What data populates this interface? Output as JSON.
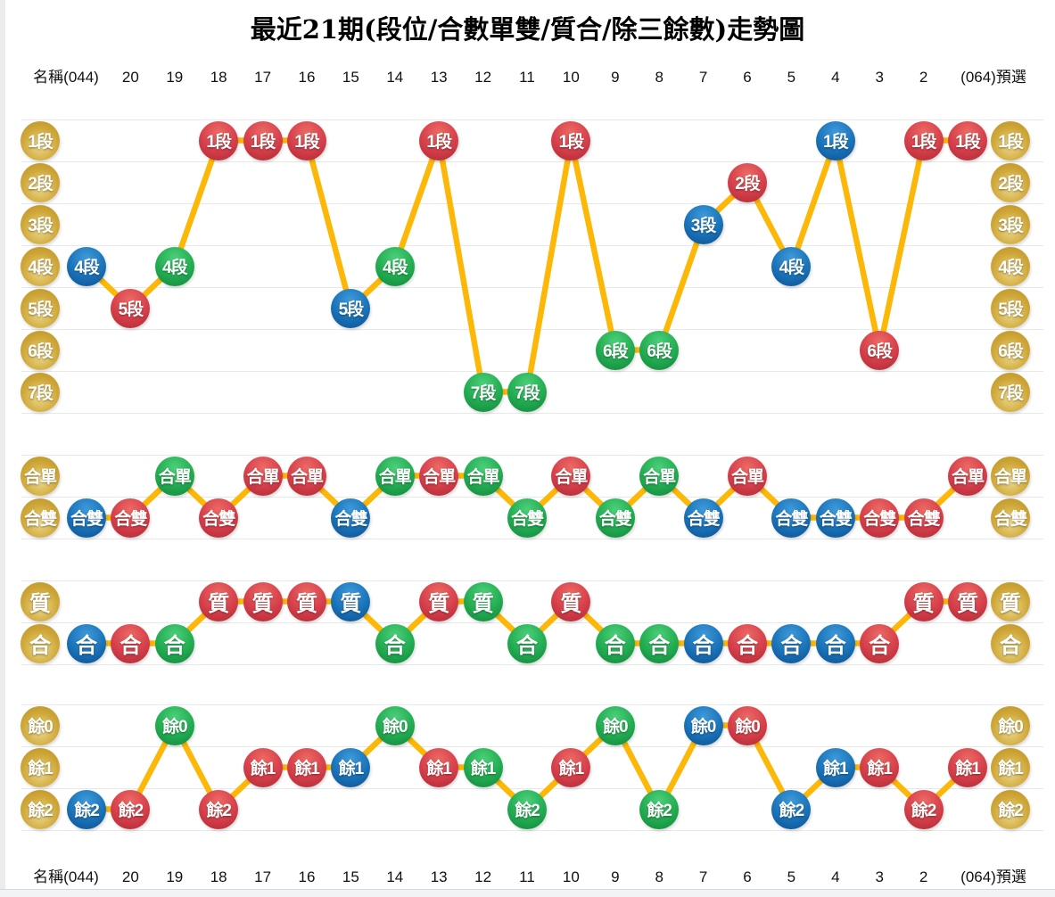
{
  "title": "最近21期(段位/合數單雙/質合/除三餘數)走勢圖",
  "header": {
    "left_label": "名稱(044)",
    "periods": [
      "20",
      "19",
      "18",
      "17",
      "16",
      "15",
      "14",
      "13",
      "12",
      "11",
      "10",
      "9",
      "8",
      "7",
      "6",
      "5",
      "4",
      "3",
      "2"
    ],
    "right_label": "(064)預選"
  },
  "colors": {
    "red": "#d6404b",
    "blue": "#1a74ba",
    "green": "#23ad52",
    "gold": "#cda534",
    "line": "#fcb707",
    "grid": "#e8e8e8"
  },
  "chart_data": [
    {
      "type": "line",
      "name": "段位",
      "rows": [
        "1段",
        "2段",
        "3段",
        "4段",
        "5段",
        "6段",
        "7段"
      ],
      "points": [
        {
          "period": "(044)",
          "label": "4段",
          "row": 3,
          "color": "blue"
        },
        {
          "period": "20",
          "label": "5段",
          "row": 4,
          "color": "red"
        },
        {
          "period": "19",
          "label": "4段",
          "row": 3,
          "color": "green"
        },
        {
          "period": "18",
          "label": "1段",
          "row": 0,
          "color": "red"
        },
        {
          "period": "17",
          "label": "1段",
          "row": 0,
          "color": "red"
        },
        {
          "period": "16",
          "label": "1段",
          "row": 0,
          "color": "red"
        },
        {
          "period": "15",
          "label": "5段",
          "row": 4,
          "color": "blue"
        },
        {
          "period": "14",
          "label": "4段",
          "row": 3,
          "color": "green"
        },
        {
          "period": "13",
          "label": "1段",
          "row": 0,
          "color": "red"
        },
        {
          "period": "12",
          "label": "7段",
          "row": 6,
          "color": "green"
        },
        {
          "period": "11",
          "label": "7段",
          "row": 6,
          "color": "green"
        },
        {
          "period": "10",
          "label": "1段",
          "row": 0,
          "color": "red"
        },
        {
          "period": "9",
          "label": "6段",
          "row": 5,
          "color": "green"
        },
        {
          "period": "8",
          "label": "6段",
          "row": 5,
          "color": "green"
        },
        {
          "period": "7",
          "label": "3段",
          "row": 2,
          "color": "blue"
        },
        {
          "period": "6",
          "label": "2段",
          "row": 1,
          "color": "red"
        },
        {
          "period": "5",
          "label": "4段",
          "row": 3,
          "color": "blue"
        },
        {
          "period": "4",
          "label": "1段",
          "row": 0,
          "color": "blue"
        },
        {
          "period": "3",
          "label": "6段",
          "row": 5,
          "color": "red"
        },
        {
          "period": "2",
          "label": "1段",
          "row": 0,
          "color": "red"
        },
        {
          "period": "(064)預選",
          "label": "1段",
          "row": 0,
          "color": "red"
        }
      ]
    },
    {
      "type": "line",
      "name": "合數單雙",
      "rows": [
        "合單",
        "合雙"
      ],
      "points": [
        {
          "period": "(044)",
          "label": "合雙",
          "row": 1,
          "color": "blue"
        },
        {
          "period": "20",
          "label": "合雙",
          "row": 1,
          "color": "red"
        },
        {
          "period": "19",
          "label": "合單",
          "row": 0,
          "color": "green"
        },
        {
          "period": "18",
          "label": "合雙",
          "row": 1,
          "color": "red"
        },
        {
          "period": "17",
          "label": "合單",
          "row": 0,
          "color": "red"
        },
        {
          "period": "16",
          "label": "合單",
          "row": 0,
          "color": "red"
        },
        {
          "period": "15",
          "label": "合雙",
          "row": 1,
          "color": "blue"
        },
        {
          "period": "14",
          "label": "合單",
          "row": 0,
          "color": "green"
        },
        {
          "period": "13",
          "label": "合單",
          "row": 0,
          "color": "red"
        },
        {
          "period": "12",
          "label": "合單",
          "row": 0,
          "color": "green"
        },
        {
          "period": "11",
          "label": "合雙",
          "row": 1,
          "color": "green"
        },
        {
          "period": "10",
          "label": "合單",
          "row": 0,
          "color": "red"
        },
        {
          "period": "9",
          "label": "合雙",
          "row": 1,
          "color": "green"
        },
        {
          "period": "8",
          "label": "合單",
          "row": 0,
          "color": "green"
        },
        {
          "period": "7",
          "label": "合雙",
          "row": 1,
          "color": "blue"
        },
        {
          "period": "6",
          "label": "合單",
          "row": 0,
          "color": "red"
        },
        {
          "period": "5",
          "label": "合雙",
          "row": 1,
          "color": "blue"
        },
        {
          "period": "4",
          "label": "合雙",
          "row": 1,
          "color": "blue"
        },
        {
          "period": "3",
          "label": "合雙",
          "row": 1,
          "color": "red"
        },
        {
          "period": "2",
          "label": "合雙",
          "row": 1,
          "color": "red"
        },
        {
          "period": "(064)預選",
          "label": "合單",
          "row": 0,
          "color": "red"
        }
      ]
    },
    {
      "type": "line",
      "name": "質合",
      "rows": [
        "質",
        "合"
      ],
      "points": [
        {
          "period": "(044)",
          "label": "合",
          "row": 1,
          "color": "blue"
        },
        {
          "period": "20",
          "label": "合",
          "row": 1,
          "color": "red"
        },
        {
          "period": "19",
          "label": "合",
          "row": 1,
          "color": "green"
        },
        {
          "period": "18",
          "label": "質",
          "row": 0,
          "color": "red"
        },
        {
          "period": "17",
          "label": "質",
          "row": 0,
          "color": "red"
        },
        {
          "period": "16",
          "label": "質",
          "row": 0,
          "color": "red"
        },
        {
          "period": "15",
          "label": "質",
          "row": 0,
          "color": "blue"
        },
        {
          "period": "14",
          "label": "合",
          "row": 1,
          "color": "green"
        },
        {
          "period": "13",
          "label": "質",
          "row": 0,
          "color": "red"
        },
        {
          "period": "12",
          "label": "質",
          "row": 0,
          "color": "green"
        },
        {
          "period": "11",
          "label": "合",
          "row": 1,
          "color": "green"
        },
        {
          "period": "10",
          "label": "質",
          "row": 0,
          "color": "red"
        },
        {
          "period": "9",
          "label": "合",
          "row": 1,
          "color": "green"
        },
        {
          "period": "8",
          "label": "合",
          "row": 1,
          "color": "green"
        },
        {
          "period": "7",
          "label": "合",
          "row": 1,
          "color": "blue"
        },
        {
          "period": "6",
          "label": "合",
          "row": 1,
          "color": "red"
        },
        {
          "period": "5",
          "label": "合",
          "row": 1,
          "color": "blue"
        },
        {
          "period": "4",
          "label": "合",
          "row": 1,
          "color": "blue"
        },
        {
          "period": "3",
          "label": "合",
          "row": 1,
          "color": "red"
        },
        {
          "period": "2",
          "label": "質",
          "row": 0,
          "color": "red"
        },
        {
          "period": "(064)預選",
          "label": "質",
          "row": 0,
          "color": "red"
        }
      ]
    },
    {
      "type": "line",
      "name": "除三餘數",
      "rows": [
        "餘0",
        "餘1",
        "餘2"
      ],
      "points": [
        {
          "period": "(044)",
          "label": "餘2",
          "row": 2,
          "color": "blue"
        },
        {
          "period": "20",
          "label": "餘2",
          "row": 2,
          "color": "red"
        },
        {
          "period": "19",
          "label": "餘0",
          "row": 0,
          "color": "green"
        },
        {
          "period": "18",
          "label": "餘2",
          "row": 2,
          "color": "red"
        },
        {
          "period": "17",
          "label": "餘1",
          "row": 1,
          "color": "red"
        },
        {
          "period": "16",
          "label": "餘1",
          "row": 1,
          "color": "red"
        },
        {
          "period": "15",
          "label": "餘1",
          "row": 1,
          "color": "blue"
        },
        {
          "period": "14",
          "label": "餘0",
          "row": 0,
          "color": "green"
        },
        {
          "period": "13",
          "label": "餘1",
          "row": 1,
          "color": "red"
        },
        {
          "period": "12",
          "label": "餘1",
          "row": 1,
          "color": "green"
        },
        {
          "period": "11",
          "label": "餘2",
          "row": 2,
          "color": "green"
        },
        {
          "period": "10",
          "label": "餘1",
          "row": 1,
          "color": "red"
        },
        {
          "period": "9",
          "label": "餘0",
          "row": 0,
          "color": "green"
        },
        {
          "period": "8",
          "label": "餘2",
          "row": 2,
          "color": "green"
        },
        {
          "period": "7",
          "label": "餘0",
          "row": 0,
          "color": "blue"
        },
        {
          "period": "6",
          "label": "餘0",
          "row": 0,
          "color": "red"
        },
        {
          "period": "5",
          "label": "餘2",
          "row": 2,
          "color": "blue"
        },
        {
          "period": "4",
          "label": "餘1",
          "row": 1,
          "color": "blue"
        },
        {
          "period": "3",
          "label": "餘1",
          "row": 1,
          "color": "red"
        },
        {
          "period": "2",
          "label": "餘2",
          "row": 2,
          "color": "red"
        },
        {
          "period": "(064)預選",
          "label": "餘1",
          "row": 1,
          "color": "red"
        }
      ]
    }
  ]
}
